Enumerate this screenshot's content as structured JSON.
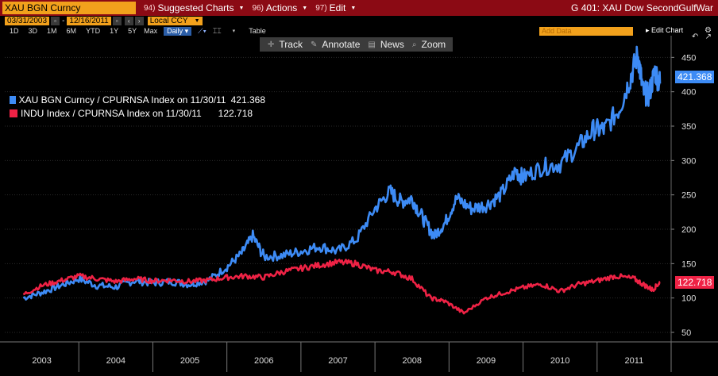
{
  "topbar": {
    "ticker": "XAU BGN Curncy",
    "menu": [
      {
        "num": "94)",
        "label": "Suggested Charts"
      },
      {
        "num": "96)",
        "label": "Actions"
      },
      {
        "num": "97)",
        "label": "Edit"
      }
    ],
    "title": "G 401: XAU Dow SecondGulfWar"
  },
  "range": {
    "start": "03/31/2003",
    "end": "12/16/2011",
    "currency": "Local CCY"
  },
  "periods": [
    "1D",
    "3D",
    "1M",
    "6M",
    "YTD",
    "1Y",
    "5Y",
    "Max",
    "Daily",
    "Table"
  ],
  "active_period": "Daily",
  "add_data_placeholder": "Add Data",
  "edit_chart": "Edit Chart",
  "toolbar": [
    {
      "icon": "crosshair-icon",
      "label": "Track"
    },
    {
      "icon": "pencil-icon",
      "label": "Annotate"
    },
    {
      "icon": "news-icon",
      "label": "News"
    },
    {
      "icon": "zoom-icon",
      "label": "Zoom"
    }
  ],
  "legend": [
    {
      "label": "XAU BGN Curncy / CPURNSA Index on 11/30/11",
      "value": "421.368",
      "color": "#3d8bf5"
    },
    {
      "label": "INDU Index / CPURNSA Index on 11/30/11",
      "value": "122.718",
      "color": "#ef2245"
    }
  ],
  "chart_data": {
    "type": "line",
    "x_labels": [
      "2003",
      "2004",
      "2005",
      "2006",
      "2007",
      "2008",
      "2009",
      "2010",
      "2011"
    ],
    "y_ticks": [
      50,
      100,
      150,
      200,
      250,
      300,
      350,
      400,
      450
    ],
    "ylim": [
      35,
      470
    ],
    "series": [
      {
        "name": "XAU BGN Curncy / CPURNSA Index on 11/30/11",
        "color": "#3d8bf5",
        "last_value": "421.368",
        "points": [
          [
            2003.25,
            100
          ],
          [
            2003.5,
            108
          ],
          [
            2003.75,
            118
          ],
          [
            2004.0,
            128
          ],
          [
            2004.25,
            118
          ],
          [
            2004.5,
            116
          ],
          [
            2004.75,
            125
          ],
          [
            2005.0,
            122
          ],
          [
            2005.25,
            124
          ],
          [
            2005.5,
            120
          ],
          [
            2005.75,
            126
          ],
          [
            2006.0,
            145
          ],
          [
            2006.2,
            165
          ],
          [
            2006.35,
            190
          ],
          [
            2006.5,
            160
          ],
          [
            2006.75,
            162
          ],
          [
            2007.0,
            168
          ],
          [
            2007.25,
            175
          ],
          [
            2007.5,
            168
          ],
          [
            2007.75,
            185
          ],
          [
            2008.0,
            230
          ],
          [
            2008.2,
            255
          ],
          [
            2008.35,
            240
          ],
          [
            2008.5,
            245
          ],
          [
            2008.65,
            215
          ],
          [
            2008.8,
            190
          ],
          [
            2008.95,
            210
          ],
          [
            2009.1,
            245
          ],
          [
            2009.3,
            230
          ],
          [
            2009.5,
            235
          ],
          [
            2009.7,
            250
          ],
          [
            2009.9,
            285
          ],
          [
            2010.0,
            275
          ],
          [
            2010.25,
            290
          ],
          [
            2010.5,
            295
          ],
          [
            2010.75,
            320
          ],
          [
            2010.95,
            345
          ],
          [
            2011.1,
            345
          ],
          [
            2011.3,
            375
          ],
          [
            2011.45,
            420
          ],
          [
            2011.55,
            455
          ],
          [
            2011.62,
            400
          ],
          [
            2011.7,
            395
          ],
          [
            2011.78,
            430
          ],
          [
            2011.85,
            412
          ]
        ]
      },
      {
        "name": "INDU Index / CPURNSA Index on 11/30/11",
        "color": "#ef2245",
        "last_value": "122.718",
        "points": [
          [
            2003.25,
            105
          ],
          [
            2003.5,
            118
          ],
          [
            2003.75,
            125
          ],
          [
            2004.0,
            132
          ],
          [
            2004.25,
            128
          ],
          [
            2004.5,
            124
          ],
          [
            2004.75,
            128
          ],
          [
            2005.0,
            125
          ],
          [
            2005.25,
            126
          ],
          [
            2005.5,
            124
          ],
          [
            2005.75,
            126
          ],
          [
            2006.0,
            130
          ],
          [
            2006.25,
            132
          ],
          [
            2006.5,
            130
          ],
          [
            2006.75,
            138
          ],
          [
            2007.0,
            143
          ],
          [
            2007.25,
            148
          ],
          [
            2007.5,
            152
          ],
          [
            2007.75,
            150
          ],
          [
            2008.0,
            140
          ],
          [
            2008.25,
            138
          ],
          [
            2008.5,
            128
          ],
          [
            2008.75,
            100
          ],
          [
            2008.95,
            95
          ],
          [
            2009.2,
            78
          ],
          [
            2009.5,
            100
          ],
          [
            2009.75,
            108
          ],
          [
            2010.0,
            115
          ],
          [
            2010.25,
            120
          ],
          [
            2010.5,
            110
          ],
          [
            2010.75,
            120
          ],
          [
            2011.0,
            125
          ],
          [
            2011.25,
            132
          ],
          [
            2011.5,
            128
          ],
          [
            2011.65,
            118
          ],
          [
            2011.75,
            112
          ],
          [
            2011.85,
            123
          ]
        ]
      }
    ]
  }
}
